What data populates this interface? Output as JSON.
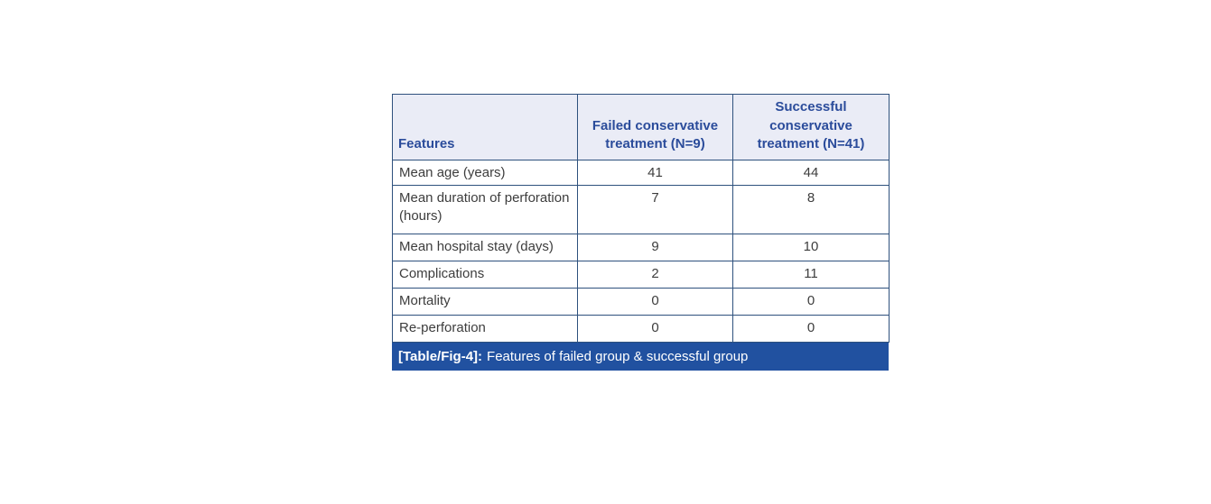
{
  "table": {
    "columns": [
      "Features",
      "Failed conservative treatment (N=9)",
      "Successful conservative treatment (N=41)"
    ],
    "rows": [
      {
        "feature": "Mean age (years)",
        "failed": "41",
        "successful": "44"
      },
      {
        "feature": "Mean duration of perforation (hours)",
        "failed": "7",
        "successful": "8"
      },
      {
        "feature": "Mean hospital stay (days)",
        "failed": "9",
        "successful": "10"
      },
      {
        "feature": "Complications",
        "failed": "2",
        "successful": "11"
      },
      {
        "feature": "Mortality",
        "failed": "0",
        "successful": "0"
      },
      {
        "feature": "Re-perforation",
        "failed": "0",
        "successful": "0"
      }
    ],
    "caption": {
      "label": "[Table/Fig-4]:",
      "text": "Features of failed group & successful group"
    },
    "colors": {
      "header_bg": "#eaecf6",
      "header_text": "#2b4c9b",
      "grid_border": "#2e517d",
      "caption_bg": "#2151a0",
      "caption_text": "#ffffff",
      "body_text": "#3d3d3d",
      "page_bg": "#ffffff"
    }
  }
}
